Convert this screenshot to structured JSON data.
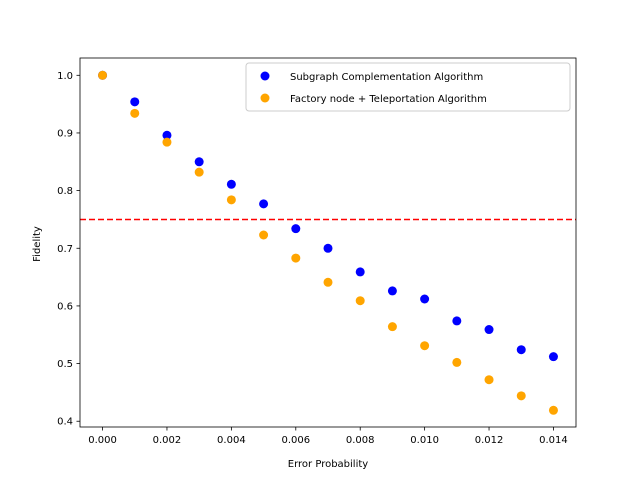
{
  "chart_data": {
    "type": "scatter",
    "title": "",
    "xlabel": "Error Probability",
    "ylabel": "Fidelity",
    "xlim": [
      -0.0007,
      0.0147
    ],
    "ylim": [
      0.39,
      1.03
    ],
    "xticks": [
      0.0,
      0.002,
      0.004,
      0.006,
      0.008,
      0.01,
      0.012,
      0.014
    ],
    "xtick_labels": [
      "0.000",
      "0.002",
      "0.004",
      "0.006",
      "0.008",
      "0.010",
      "0.012",
      "0.014"
    ],
    "yticks": [
      0.4,
      0.5,
      0.6,
      0.7,
      0.8,
      0.9,
      1.0
    ],
    "ytick_labels": [
      "0.4",
      "0.5",
      "0.6",
      "0.7",
      "0.8",
      "0.9",
      "1.0"
    ],
    "legend_position": "top-right",
    "x": [
      0.0,
      0.001,
      0.002,
      0.003,
      0.004,
      0.005,
      0.006,
      0.007,
      0.008,
      0.009,
      0.01,
      0.011,
      0.012,
      0.013,
      0.014
    ],
    "series": [
      {
        "name": "Subgraph Complementation Algorithm",
        "color": "#0000ff",
        "values": [
          1.0,
          0.954,
          0.896,
          0.85,
          0.811,
          0.777,
          0.734,
          0.7,
          0.659,
          0.626,
          0.612,
          0.574,
          0.559,
          0.524,
          0.512
        ]
      },
      {
        "name": "Factory node + Teleportation Algorithm",
        "color": "#ffa500",
        "values": [
          1.0,
          0.934,
          0.884,
          0.832,
          0.784,
          0.723,
          0.683,
          0.641,
          0.609,
          0.564,
          0.531,
          0.502,
          0.472,
          0.444,
          0.419
        ]
      }
    ],
    "reference_line": {
      "type": "horizontal",
      "y": 0.75,
      "color": "#ff0000",
      "style": "dashed"
    }
  }
}
